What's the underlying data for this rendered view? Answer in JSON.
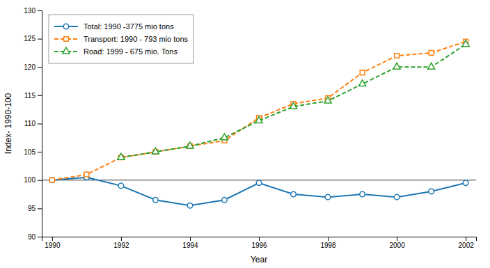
{
  "chart_data": {
    "type": "line",
    "x": [
      1990,
      1991,
      1992,
      1993,
      1994,
      1995,
      1996,
      1997,
      1998,
      1999,
      2000,
      2001,
      2002
    ],
    "series": [
      {
        "name": "Total: 1990 -3775 mio tons",
        "marker": "circle",
        "line_style": "solid",
        "values": [
          100,
          100.5,
          99,
          96.5,
          95.5,
          96.5,
          99.5,
          97.5,
          97,
          97.5,
          97,
          98,
          99.5
        ]
      },
      {
        "name": "Transport: 1990 - 793 mio tons",
        "marker": "square",
        "line_style": "dashed",
        "values": [
          100,
          101,
          104,
          105,
          106,
          107,
          111,
          113.5,
          114.5,
          119,
          122,
          122.5,
          124.5
        ]
      },
      {
        "name": "Road: 1999 - 675 mio. Tons",
        "marker": "triangle",
        "line_style": "dashed",
        "values": [
          null,
          null,
          104,
          105,
          106,
          107.5,
          110.5,
          113,
          114,
          117,
          120,
          120,
          124
        ]
      }
    ],
    "reference_line": 100,
    "xlabel": "Year",
    "ylabel": "Index- 1990-100",
    "xlim": [
      1989.7,
      2002.3
    ],
    "xticks": [
      1990,
      1992,
      1994,
      1996,
      1998,
      2000,
      2002
    ],
    "ylim": [
      90,
      130
    ],
    "yticks": [
      90,
      95,
      100,
      105,
      110,
      115,
      120,
      125,
      130
    ],
    "grid": false,
    "legend": "upper left"
  }
}
